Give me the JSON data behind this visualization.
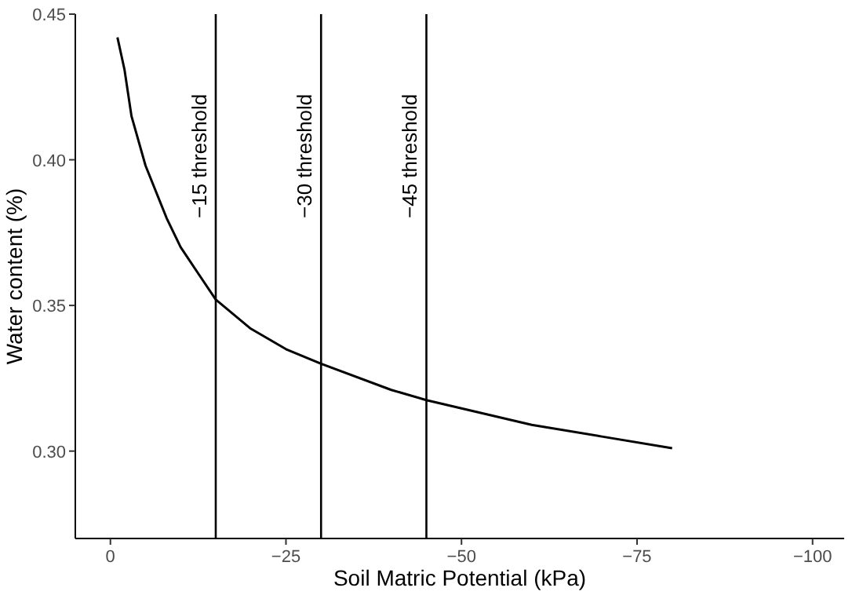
{
  "chart_data": {
    "type": "line",
    "xlabel": "Soil Matric Potential (kPa)",
    "ylabel": "Water content (%)",
    "xlim": [
      5,
      -104.5
    ],
    "ylim": [
      0.27,
      0.45
    ],
    "xticks": [
      0,
      {
        "value": -25,
        "label": "−25"
      },
      {
        "value": -50,
        "label": "−50"
      },
      {
        "value": -75,
        "label": "−75"
      },
      {
        "value": -100,
        "label": "−100"
      }
    ],
    "yticks": [
      {
        "value": 0.3,
        "label": "0.30"
      },
      {
        "value": 0.35,
        "label": "0.35"
      },
      {
        "value": 0.4,
        "label": "0.40"
      },
      {
        "value": 0.45,
        "label": "0.45"
      }
    ],
    "grid": false,
    "marker": "none",
    "line_style": "solid",
    "series": [
      {
        "color": "#000000",
        "x": [
          -1,
          -2,
          -3,
          -5,
          -8,
          -10,
          -15,
          -20,
          -25,
          -30,
          -40,
          -45,
          -60,
          -70,
          -80
        ],
        "values": [
          0.442,
          0.431,
          0.415,
          0.398,
          0.38,
          0.37,
          0.352,
          0.342,
          0.335,
          0.33,
          0.321,
          0.3175,
          0.309,
          0.305,
          0.301
        ]
      }
    ],
    "ref_lines": [
      {
        "axis": "x",
        "value": -15,
        "label": "−15 threshold",
        "color": "#000000"
      },
      {
        "axis": "x",
        "value": -30,
        "label": "−30 threshold",
        "color": "#000000"
      },
      {
        "axis": "x",
        "value": -45,
        "label": "−45 threshold",
        "color": "#000000"
      }
    ]
  }
}
